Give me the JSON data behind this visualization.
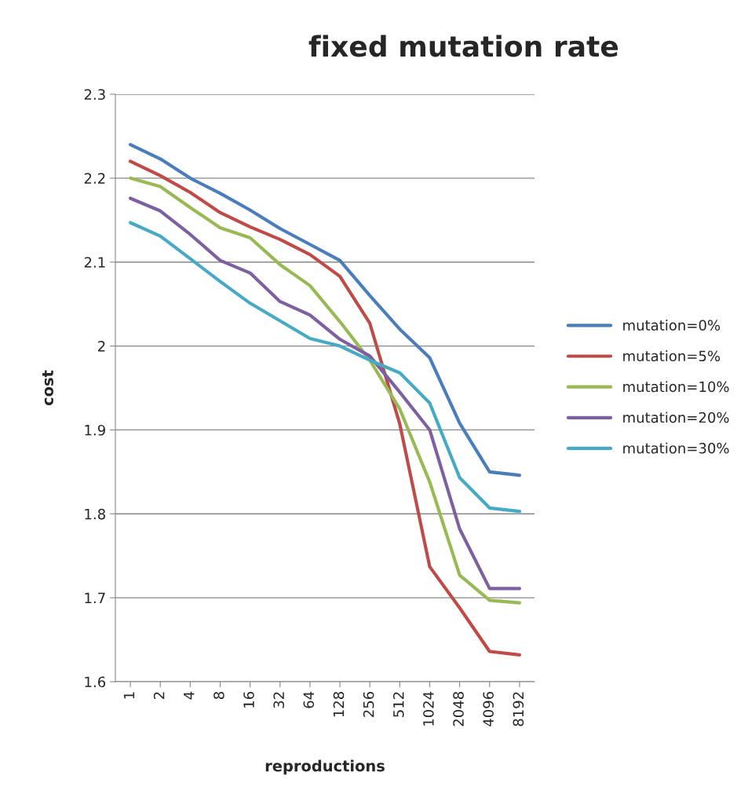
{
  "chart_data": {
    "type": "line",
    "title": "fixed mutation rate",
    "xlabel": "reproductions",
    "ylabel": "cost",
    "categories": [
      "1",
      "2",
      "4",
      "8",
      "16",
      "32",
      "64",
      "128",
      "256",
      "512",
      "1024",
      "2048",
      "4096",
      "8192"
    ],
    "series": [
      {
        "name": "mutation=0%",
        "color": "#4a7ebb",
        "values": [
          2.24,
          2.223,
          2.2,
          2.182,
          2.162,
          2.14,
          2.121,
          2.102,
          2.06,
          2.02,
          1.986,
          1.908,
          1.85,
          1.846
        ]
      },
      {
        "name": "mutation=5%",
        "color": "#be4b48",
        "values": [
          2.22,
          2.203,
          2.183,
          2.159,
          2.142,
          2.127,
          2.109,
          2.083,
          2.027,
          1.907,
          1.737,
          1.688,
          1.636,
          1.632
        ]
      },
      {
        "name": "mutation=10%",
        "color": "#98b954",
        "values": [
          2.2,
          2.19,
          2.165,
          2.141,
          2.129,
          2.097,
          2.072,
          2.029,
          1.983,
          1.925,
          1.838,
          1.727,
          1.697,
          1.694
        ]
      },
      {
        "name": "mutation=20%",
        "color": "#7d60a0",
        "values": [
          2.176,
          2.161,
          2.133,
          2.102,
          2.087,
          2.053,
          2.037,
          2.008,
          1.988,
          1.945,
          1.9,
          1.782,
          1.711,
          1.711
        ]
      },
      {
        "name": "mutation=30%",
        "color": "#46aac5",
        "values": [
          2.147,
          2.131,
          2.104,
          2.077,
          2.051,
          2.03,
          2.009,
          2.0,
          1.983,
          1.968,
          1.932,
          1.843,
          1.807,
          1.803
        ]
      }
    ],
    "ylim": [
      1.6,
      2.3
    ],
    "yticks": [
      1.6,
      1.7,
      1.8,
      1.9,
      2,
      2.1,
      2.2,
      2.3
    ],
    "grid": "y",
    "legend": "right",
    "marker": "none",
    "line_style": "solid"
  }
}
